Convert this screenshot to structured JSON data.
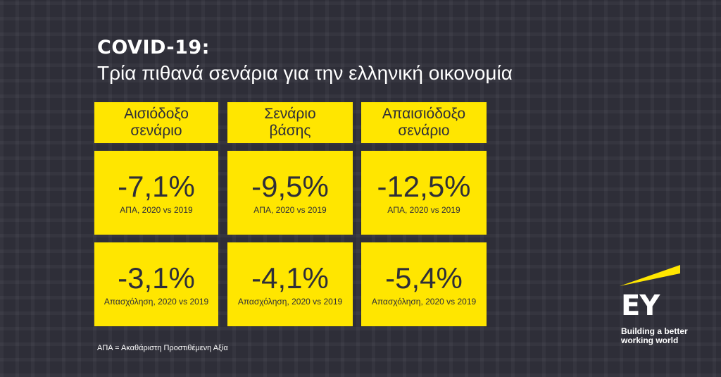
{
  "header": {
    "title": "COVID-19:",
    "subtitle": "Τρία πιθανά σενάρια για την ελληνική οικονομία"
  },
  "scenarios": [
    {
      "line1": "Αισιόδοξο",
      "line2": "σενάριο",
      "gdp_value": "-7,1%",
      "gdp_label": "ΑΠΑ, 2020 vs 2019",
      "emp_value": "-3,1%",
      "emp_label": "Απασχόληση, 2020 vs 2019"
    },
    {
      "line1": "Σενάριο",
      "line2": "βάσης",
      "gdp_value": "-9,5%",
      "gdp_label": "ΑΠΑ, 2020 vs 2019",
      "emp_value": "-4,1%",
      "emp_label": "Απασχόληση, 2020 vs 2019"
    },
    {
      "line1": "Απαισιόδοξο",
      "line2": "σενάριο",
      "gdp_value": "-12,5%",
      "gdp_label": "ΑΠΑ, 2020 vs 2019",
      "emp_value": "-5,4%",
      "emp_label": "Απασχόληση, 2020 vs 2019"
    }
  ],
  "footnote": "ΑΠΑ = Ακαθάριστη Προστιθέμενη Αξία",
  "logo": {
    "wordmark": "EY",
    "tagline_line1": "Building a better",
    "tagline_line2": "working world"
  },
  "colors": {
    "background": "#2e2e38",
    "accent": "#ffe600",
    "text_dark": "#2e2e38",
    "text_light": "#ffffff"
  }
}
